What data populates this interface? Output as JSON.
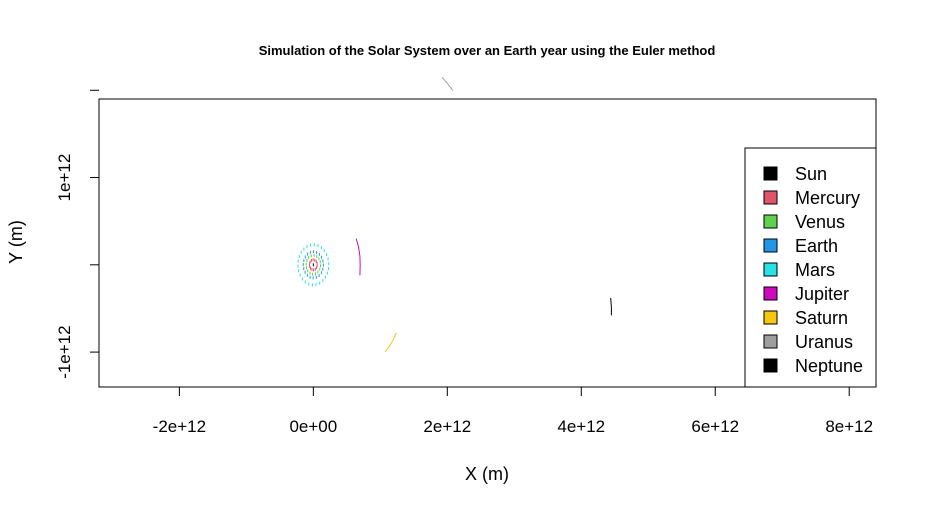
{
  "chart_data": {
    "type": "scatter",
    "title": "Simulation of the Solar System over an Earth year using the Euler method",
    "xlabel": "X (m)",
    "ylabel": "Y (m)",
    "xlim": [
      -3200000000000.0,
      8400000000000.0
    ],
    "ylim": [
      -1400000000000.0,
      1900000000000.0
    ],
    "x_ticks": [
      {
        "value": -2000000000000.0,
        "label": "-2e+12"
      },
      {
        "value": 0,
        "label": "0e+00"
      },
      {
        "value": 2000000000000.0,
        "label": "2e+12"
      },
      {
        "value": 4000000000000.0,
        "label": "4e+12"
      },
      {
        "value": 6000000000000.0,
        "label": "6e+12"
      },
      {
        "value": 8000000000000.0,
        "label": "8e+12"
      }
    ],
    "y_ticks": [
      {
        "value": -1000000000000.0,
        "label": "-1e+12"
      },
      {
        "value": 0,
        "label": ""
      },
      {
        "value": 1000000000000.0,
        "label": "1e+12"
      },
      {
        "value": 2000000000000.0,
        "label": ""
      }
    ],
    "legend_position": "bottom-right",
    "series": [
      {
        "name": "Sun",
        "color": "#000000",
        "kind": "ring",
        "center": [
          0,
          0
        ],
        "radius": 0,
        "points": 1
      },
      {
        "name": "Mercury",
        "color": "#DF536B",
        "kind": "ring",
        "center": [
          0,
          0
        ],
        "radius": 58000000000.0,
        "points": 14
      },
      {
        "name": "Venus",
        "color": "#61D04F",
        "kind": "ring",
        "center": [
          0,
          0
        ],
        "radius": 108000000000.0,
        "points": 16
      },
      {
        "name": "Earth",
        "color": "#2297E6",
        "kind": "ring",
        "center": [
          0,
          0
        ],
        "radius": 150000000000.0,
        "points": 20
      },
      {
        "name": "Mars",
        "color": "#28E2E5",
        "kind": "ring",
        "center": [
          0,
          0
        ],
        "radius": 230000000000.0,
        "points": 26
      },
      {
        "name": "Jupiter",
        "color": "#CD0BBC",
        "kind": "path",
        "points_xy": [
          [
            640000000000.0,
            300000000000.0
          ],
          [
            675000000000.0,
            200000000000.0
          ],
          [
            695000000000.0,
            100000000000.0
          ],
          [
            700000000000.0,
            0.0
          ],
          [
            695000000000.0,
            -120000000000.0
          ]
        ]
      },
      {
        "name": "Saturn",
        "color": "#F5C710",
        "kind": "path",
        "points_xy": [
          [
            1070000000000.0,
            -1000000000000.0
          ],
          [
            1130000000000.0,
            -940000000000.0
          ],
          [
            1190000000000.0,
            -860000000000.0
          ],
          [
            1240000000000.0,
            -780000000000.0
          ]
        ]
      },
      {
        "name": "Uranus",
        "color": "#9E9E9E",
        "kind": "path",
        "points_xy": [
          [
            1920000000000.0,
            2150000000000.0
          ],
          [
            2000000000000.0,
            2080000000000.0
          ],
          [
            2080000000000.0,
            2000000000000.0
          ]
        ]
      },
      {
        "name": "Neptune",
        "color": "#000000",
        "kind": "path",
        "points_xy": [
          [
            4440000000000.0,
            -380000000000.0
          ],
          [
            4450000000000.0,
            -490000000000.0
          ],
          [
            4450000000000.0,
            -580000000000.0
          ]
        ]
      }
    ]
  }
}
